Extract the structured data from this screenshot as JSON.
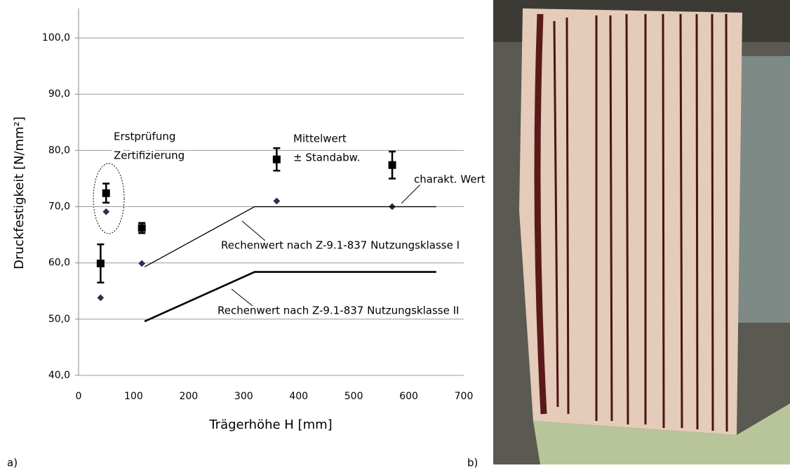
{
  "chart_data": {
    "type": "scatter",
    "xlabel": "Trägerhöhe H [mm]",
    "ylabel": "Druckfestigkeit [N/mm²]",
    "xlim": [
      0,
      700
    ],
    "xticks": [
      0,
      100,
      200,
      300,
      400,
      500,
      600,
      700
    ],
    "ylim": [
      40,
      105
    ],
    "yticks": [
      {
        "value": 40,
        "label": "40,0"
      },
      {
        "value": 50,
        "label": "50,0"
      },
      {
        "value": 60,
        "label": "60,0"
      },
      {
        "value": 70,
        "label": "70,0"
      },
      {
        "value": 80,
        "label": "80,0"
      },
      {
        "value": 90,
        "label": "90,0"
      },
      {
        "value": 100,
        "label": "100,0"
      }
    ],
    "grid": true,
    "series": [
      {
        "marker": "square",
        "color": "#000000",
        "x": [
          40,
          50,
          115,
          360,
          570
        ],
        "values": [
          59.9,
          72.4,
          66.2,
          78.4,
          77.4
        ],
        "errors": [
          3.4,
          1.7,
          0.9,
          2.0,
          2.4
        ]
      },
      {
        "marker": "diamond",
        "color": "#2b2f5a",
        "x": [
          40,
          50,
          115,
          360,
          570
        ],
        "values": [
          53.8,
          69.1,
          59.9,
          71.0,
          70.0
        ]
      },
      {
        "marker": "line",
        "color": "#000000",
        "width": 1.3,
        "x": [
          120,
          320,
          650
        ],
        "values": [
          59.3,
          70.0,
          70.0
        ]
      },
      {
        "marker": "line",
        "color": "#000000",
        "width": 2.6,
        "x": [
          120,
          320,
          650
        ],
        "values": [
          49.6,
          58.4,
          58.4
        ]
      }
    ],
    "annotations": [
      "Erstprüfung",
      "Zertifizierung",
      "Mittelwert",
      "± Standabw.",
      "charakt. Wert",
      "Rechenwert nach Z-9.1-837 Nutzungsklasse I",
      "Rechenwert nach Z-9.1-837 Nutzungsklasse II"
    ],
    "panel_labels": [
      "a)",
      "b)"
    ]
  }
}
